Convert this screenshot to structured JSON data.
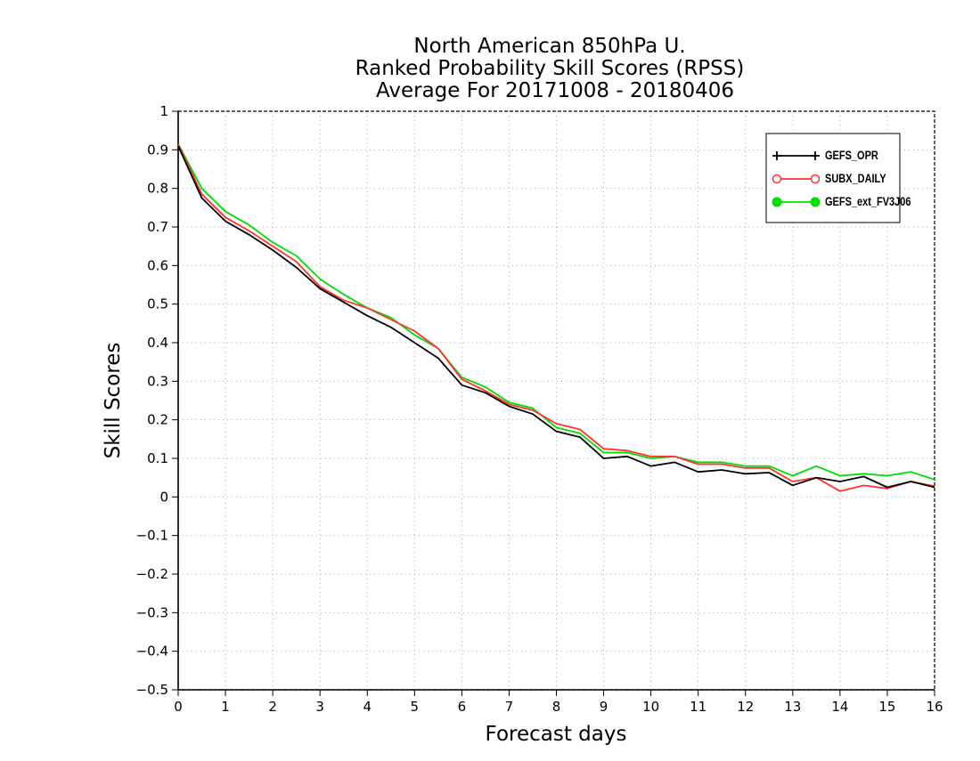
{
  "chart_data": {
    "type": "line",
    "title_lines": [
      "North American 850hPa U.",
      "Ranked Probability Skill Scores (RPSS)",
      "Average For 20171008 - 20180406"
    ],
    "xlabel": "Forecast days",
    "ylabel": "Skill Scores",
    "xlim": [
      0,
      16
    ],
    "ylim": [
      -0.5,
      1
    ],
    "x_ticks": [
      0,
      1,
      2,
      3,
      4,
      5,
      6,
      7,
      8,
      9,
      10,
      11,
      12,
      13,
      14,
      15,
      16
    ],
    "y_ticks": [
      -0.5,
      -0.4,
      -0.3,
      -0.2,
      -0.1,
      0,
      0.1,
      0.2,
      0.3,
      0.4,
      0.5,
      0.6,
      0.7,
      0.8,
      0.9,
      1
    ],
    "x_tick_labels": [
      "0",
      "1",
      "2",
      "3",
      "4",
      "5",
      "6",
      "7",
      "8",
      "9",
      "10",
      "11",
      "12",
      "13",
      "14",
      "15",
      "16"
    ],
    "y_tick_labels": [
      "−0.5",
      "−0.4",
      "−0.3",
      "−0.2",
      "−0.1",
      "0",
      "0.1",
      "0.2",
      "0.3",
      "0.4",
      "0.5",
      "0.6",
      "0.7",
      "0.8",
      "0.9",
      "1"
    ],
    "grid": true,
    "legend_position": "top-right",
    "x": [
      0,
      0.5,
      1,
      1.5,
      2,
      2.5,
      3,
      3.5,
      4,
      4.5,
      5,
      5.5,
      6,
      6.5,
      7,
      7.5,
      8,
      8.5,
      9,
      9.5,
      10,
      10.5,
      11,
      11.5,
      12,
      12.5,
      13,
      13.5,
      14,
      14.5,
      15,
      15.5,
      16
    ],
    "series": [
      {
        "name": "GEFS_OPR",
        "color": "#000000",
        "marker": "plus",
        "values": [
          0.91,
          0.775,
          0.715,
          0.68,
          0.64,
          0.595,
          0.54,
          0.505,
          0.47,
          0.44,
          0.4,
          0.36,
          0.29,
          0.27,
          0.235,
          0.215,
          0.17,
          0.155,
          0.1,
          0.105,
          0.08,
          0.09,
          0.065,
          0.07,
          0.06,
          0.063,
          0.03,
          0.05,
          0.04,
          0.053,
          0.025,
          0.04,
          0.025
        ]
      },
      {
        "name": "SUBX_DAILY",
        "color": "#ff3333",
        "marker": "open-circle",
        "values": [
          0.915,
          0.785,
          0.725,
          0.69,
          0.65,
          0.61,
          0.545,
          0.51,
          0.49,
          0.46,
          0.43,
          0.385,
          0.305,
          0.275,
          0.24,
          0.225,
          0.19,
          0.175,
          0.125,
          0.12,
          0.105,
          0.105,
          0.085,
          0.085,
          0.075,
          0.075,
          0.04,
          0.05,
          0.015,
          0.03,
          0.022,
          0.04,
          0.028
        ]
      },
      {
        "name": "GEFS_ext_FV3J06",
        "color": "#00dd00",
        "marker": "filled-circle",
        "values": [
          0.915,
          0.8,
          0.74,
          0.705,
          0.66,
          0.625,
          0.565,
          0.525,
          0.49,
          0.465,
          0.42,
          0.385,
          0.31,
          0.285,
          0.245,
          0.23,
          0.18,
          0.165,
          0.115,
          0.115,
          0.1,
          0.105,
          0.09,
          0.09,
          0.08,
          0.08,
          0.055,
          0.08,
          0.055,
          0.06,
          0.055,
          0.065,
          0.045
        ]
      }
    ]
  }
}
